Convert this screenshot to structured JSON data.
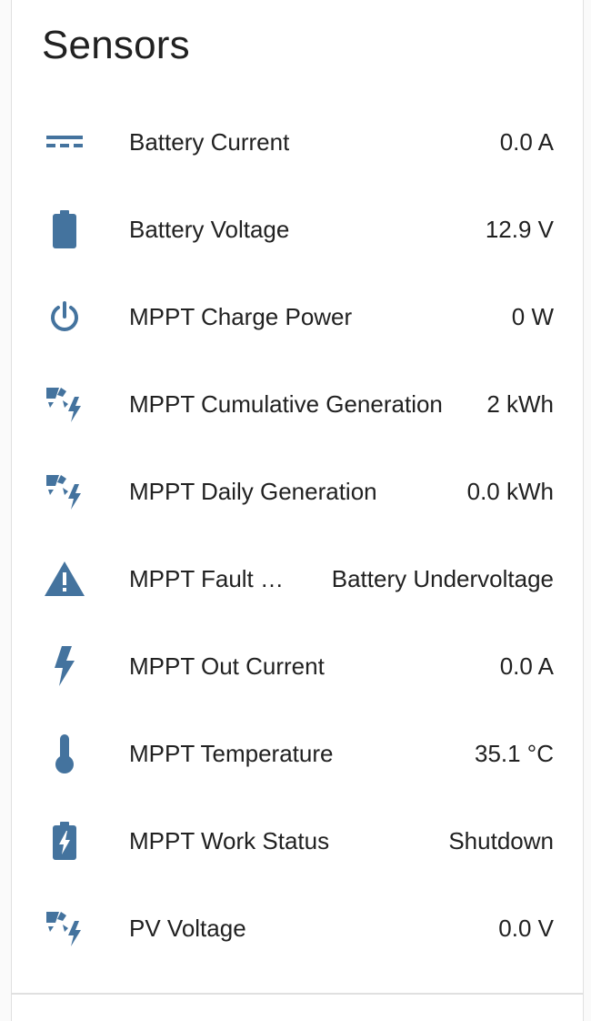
{
  "card": {
    "title": "Sensors"
  },
  "colors": {
    "icon": "#44739e",
    "text": "#212121",
    "divider": "#e0e0e0"
  },
  "sensors": [
    {
      "label": "Battery Current",
      "value": "0.0 A",
      "icon": "current-dc-icon"
    },
    {
      "label": "Battery Voltage",
      "value": "12.9 V",
      "icon": "battery-icon"
    },
    {
      "label": "MPPT Charge Power",
      "value": "0 W",
      "icon": "power-icon"
    },
    {
      "label": "MPPT Cumulative Generation",
      "value": "2 kWh",
      "icon": "solar-power-icon"
    },
    {
      "label": "MPPT Daily Generation",
      "value": "0.0 kWh",
      "icon": "solar-power-icon"
    },
    {
      "label": "MPPT Fault …",
      "value": "Battery Undervoltage",
      "icon": "alert-icon"
    },
    {
      "label": "MPPT Out Current",
      "value": "0.0 A",
      "icon": "flash-icon"
    },
    {
      "label": "MPPT Temperature",
      "value": "35.1 °C",
      "icon": "thermometer-icon"
    },
    {
      "label": "MPPT Work Status",
      "value": "Shutdown",
      "icon": "battery-charging-icon"
    },
    {
      "label": "PV Voltage",
      "value": "0.0 V",
      "icon": "solar-power-icon"
    }
  ]
}
